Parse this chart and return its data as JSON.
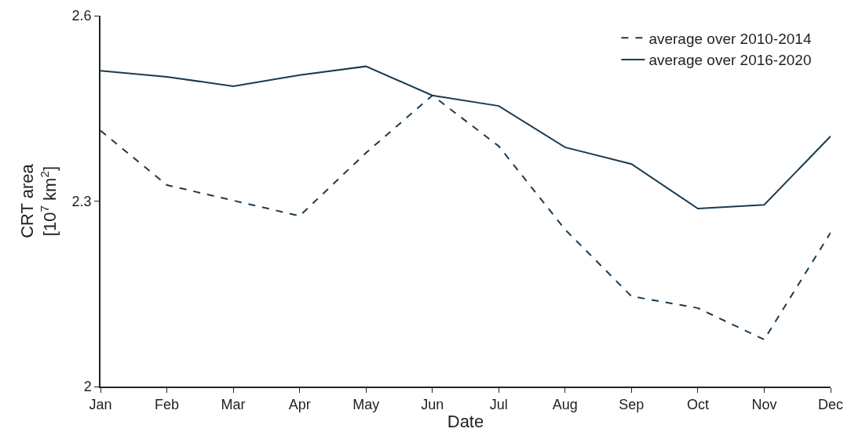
{
  "chart_data": {
    "type": "line",
    "xlabel": "Date",
    "ylabel": "CRT area\n[10$^{7}$ km$^{2}$]",
    "categories": [
      "Jan",
      "Feb",
      "Mar",
      "Apr",
      "May",
      "Jun",
      "Jul",
      "Aug",
      "Sep",
      "Oct",
      "Nov",
      "Dec"
    ],
    "series": [
      {
        "name": "average over 2010-2014",
        "color": "#1b3a4f",
        "line_style": "dashed",
        "values": [
          2.414,
          2.326,
          2.301,
          2.276,
          2.378,
          2.471,
          2.389,
          2.254,
          2.146,
          2.127,
          2.076,
          2.249
        ]
      },
      {
        "name": "average over 2016-2020",
        "color": "#1b3a4f",
        "line_style": "solid",
        "values": [
          2.511,
          2.501,
          2.486,
          2.504,
          2.518,
          2.471,
          2.454,
          2.387,
          2.36,
          2.288,
          2.294,
          2.405
        ]
      }
    ],
    "ylim": [
      2,
      2.6
    ],
    "yticks": [
      2,
      2.3,
      2.6
    ],
    "grid": false,
    "legend": "top right",
    "marker": "none"
  }
}
